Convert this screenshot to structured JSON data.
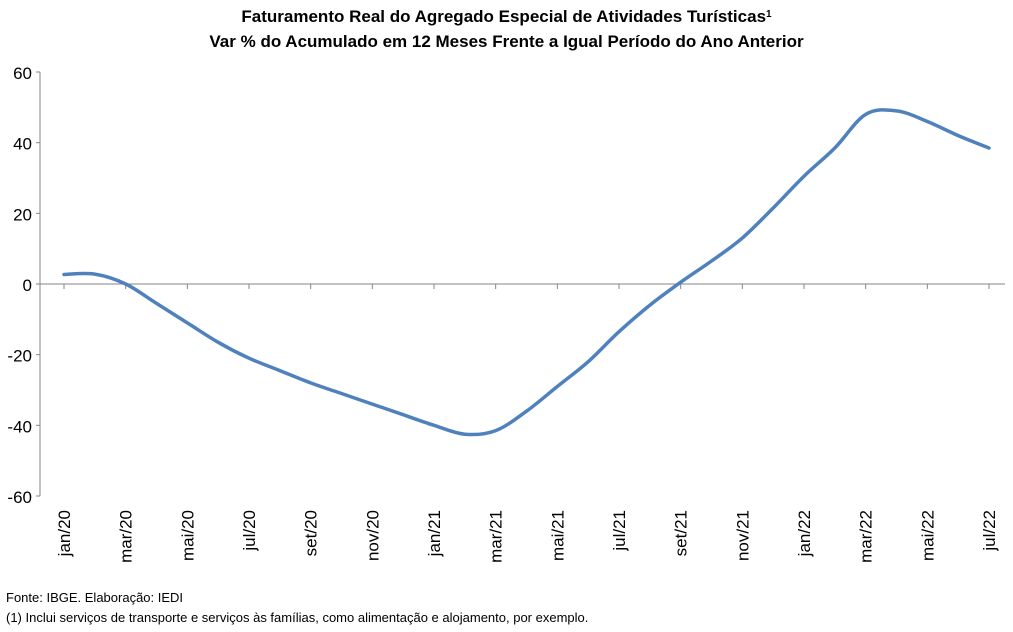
{
  "title": {
    "line1": "Faturamento Real do Agregado Especial de Atividades Turísticas",
    "line1_superscript": "1",
    "line2": "Var % do Acumulado em 12 Meses Frente a Igual Período do Ano Anterior"
  },
  "footer": {
    "source": "Fonte: IBGE. Elaboração: IEDI",
    "note": "(1) Inclui serviços de transporte e serviços às famílias, como alimentação e alojamento, por exemplo."
  },
  "chart_data": {
    "type": "line",
    "title": "Faturamento Real do Agregado Especial de Atividades Turísticas¹ — Var % do Acumulado em 12 Meses Frente a Igual Período do Ano Anterior",
    "xlabel": "",
    "ylabel": "",
    "ylim": [
      -60,
      60
    ],
    "yticks": [
      -60,
      -40,
      -20,
      0,
      20,
      40,
      60
    ],
    "grid": false,
    "legend": "none",
    "line_color": "#4F81BD",
    "x": [
      "jan/20",
      "fev/20",
      "mar/20",
      "abr/20",
      "mai/20",
      "jun/20",
      "jul/20",
      "ago/20",
      "set/20",
      "out/20",
      "nov/20",
      "dez/20",
      "jan/21",
      "fev/21",
      "mar/21",
      "abr/21",
      "mai/21",
      "jun/21",
      "jul/21",
      "ago/21",
      "set/21",
      "out/21",
      "nov/21",
      "dez/21",
      "jan/22",
      "fev/22",
      "mar/22",
      "abr/22",
      "mai/22",
      "jun/22",
      "jul/22"
    ],
    "x_tick_labels": [
      "jan/20",
      "mar/20",
      "mai/20",
      "jul/20",
      "set/20",
      "nov/20",
      "jan/21",
      "mar/21",
      "mai/21",
      "jul/21",
      "set/21",
      "nov/21",
      "jan/22",
      "mar/22",
      "mai/22",
      "jul/22"
    ],
    "series": [
      {
        "values": [
          2.7,
          2.8,
          0.0,
          -5.5,
          -11.0,
          -16.5,
          -21.0,
          -24.5,
          -28.0,
          -31.0,
          -34.0,
          -37.0,
          -40.0,
          -42.5,
          -41.5,
          -36.0,
          -29.0,
          -22.0,
          -13.5,
          -6.0,
          0.5,
          6.5,
          13.0,
          21.5,
          30.5,
          38.5,
          48.0,
          49.0,
          46.0,
          42.0,
          38.5
        ]
      }
    ]
  }
}
